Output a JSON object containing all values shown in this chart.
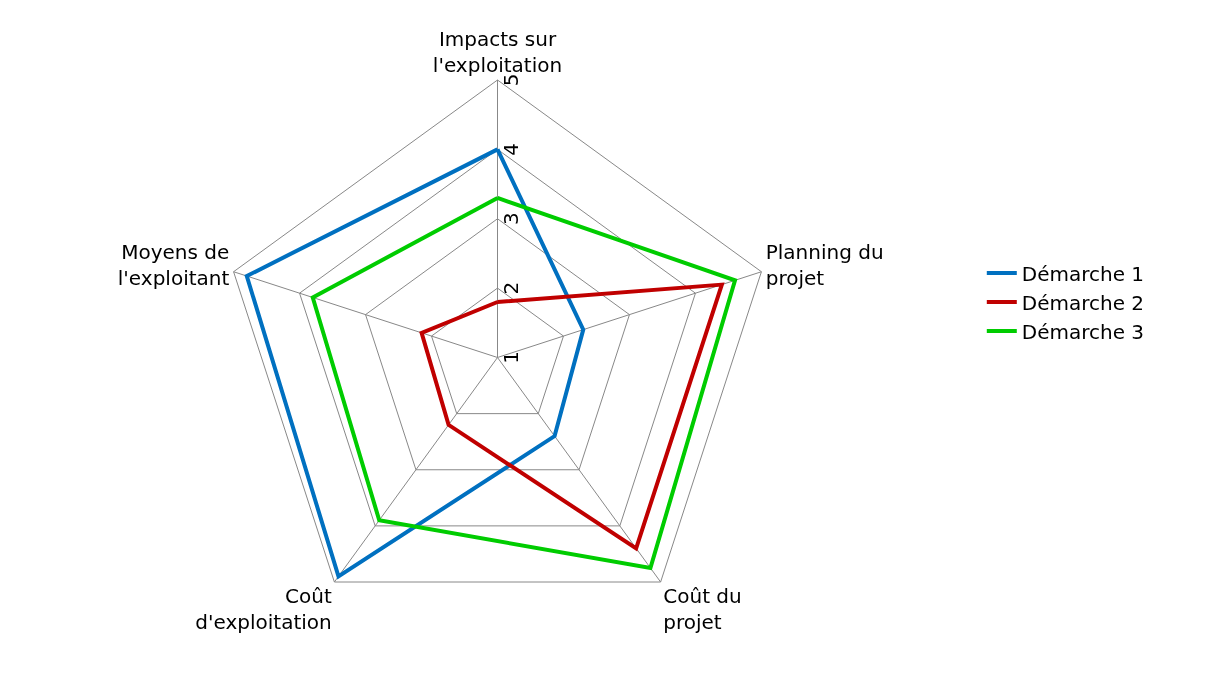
{
  "chart_data": {
    "type": "radar",
    "categories": [
      "Impacts sur l'exploitation",
      "Planning du projet",
      "Coût du projet",
      "Coût d'exploitation",
      "Moyens de l'exploitant"
    ],
    "series": [
      {
        "name": "Démarche 1",
        "color": "#0070c0",
        "values": [
          4,
          2.3,
          2.4,
          4.9,
          4.8
        ]
      },
      {
        "name": "Démarche 2",
        "color": "#c00000",
        "values": [
          1.8,
          4.4,
          4.4,
          2.2,
          2.15
        ]
      },
      {
        "name": "Démarche 3",
        "color": "#00cc00",
        "values": [
          3.3,
          4.6,
          4.75,
          3.9,
          3.8
        ]
      }
    ],
    "ylim": [
      1,
      5
    ],
    "yticks": [
      1,
      2,
      3,
      4,
      5
    ],
    "grid": true,
    "legend": "right"
  }
}
